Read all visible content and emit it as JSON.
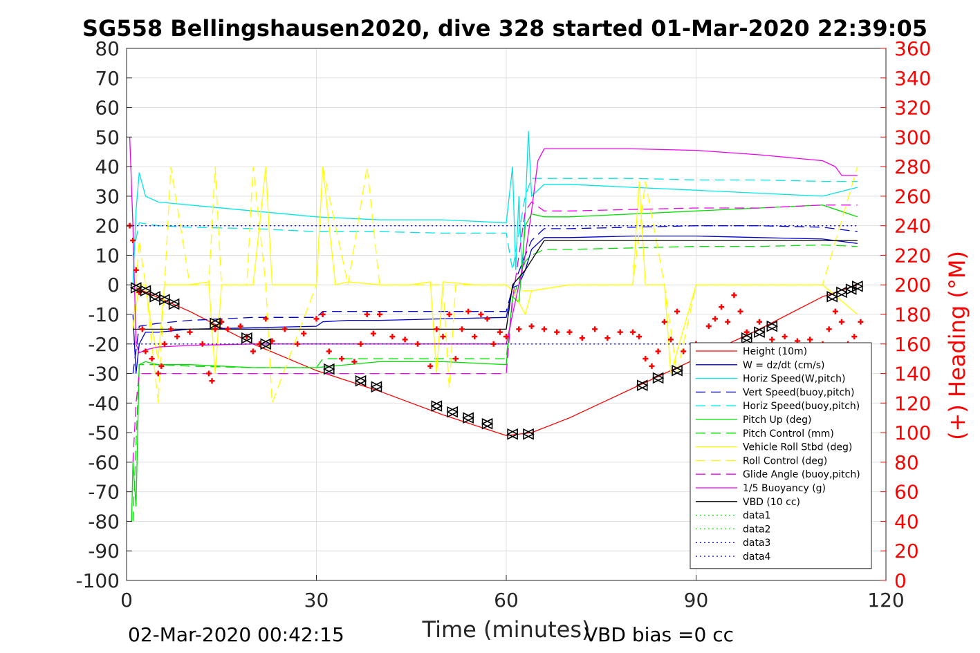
{
  "chart_data": {
    "type": "line",
    "title": "SG558 Bellingshausen2020, dive 328 started 01-Mar-2020 22:39:05",
    "xlabel": "Time (minutes)",
    "ylabel": "",
    "y2label": "(+) Heading (°M)",
    "xlim": [
      0,
      120
    ],
    "ylim": [
      -100,
      80
    ],
    "y2lim": [
      0,
      360
    ],
    "x_ticks": [
      "0",
      "30",
      "60",
      "90",
      "120"
    ],
    "y_ticks": [
      "80",
      "70",
      "60",
      "50",
      "40",
      "30",
      "20",
      "10",
      "0",
      "-10",
      "-20",
      "-30",
      "-40",
      "-50",
      "-60",
      "-70",
      "-80",
      "-90",
      "-100"
    ],
    "y2_ticks": [
      "360",
      "340",
      "320",
      "300",
      "280",
      "260",
      "240",
      "220",
      "200",
      "180",
      "160",
      "140",
      "120",
      "100",
      "80",
      "60",
      "40",
      "20",
      "0"
    ],
    "grid": true,
    "legend_position": "lower-right",
    "footer_left": "02-Mar-2020 00:42:15",
    "footer_right": "VBD bias =0 cc",
    "series": [
      {
        "name": "Height (10m)",
        "color": "#ff0000",
        "style": "solid",
        "x": [
          1.5,
          10,
          20,
          30,
          40,
          50,
          60,
          64,
          70,
          80,
          90,
          100,
          110,
          115.5
        ],
        "y": [
          -1,
          -9,
          -20,
          -29,
          -36,
          -44,
          -51,
          -50,
          -45,
          -35,
          -25,
          -15,
          -4,
          0
        ]
      },
      {
        "name": "W = dz/dt (cm/s)",
        "color": "#0000cc",
        "style": "solid",
        "x": [
          1,
          1.5,
          2,
          3,
          5,
          10,
          20,
          30,
          31,
          35,
          40,
          50,
          60,
          61,
          62,
          63,
          64,
          66,
          70,
          80,
          90,
          100,
          110,
          115.5
        ],
        "y": [
          -10,
          -30,
          -20,
          -16,
          -16,
          -15,
          -14.5,
          -14,
          -12.5,
          -12,
          -12,
          -11.5,
          -11,
          -1,
          0,
          5,
          12,
          16,
          16,
          16.5,
          16.5,
          16,
          15.5,
          14
        ]
      },
      {
        "name": "Horiz Speed(W,pitch)",
        "color": "#00e5e5",
        "style": "solid",
        "x": [
          1,
          1.5,
          2,
          3,
          5,
          10,
          20,
          30,
          40,
          50,
          60,
          61,
          61.5,
          62,
          62.5,
          63,
          63.5,
          64,
          66,
          70,
          80,
          90,
          100,
          110,
          115.5
        ],
        "y": [
          0,
          25,
          38,
          30,
          28,
          27,
          25,
          23,
          22,
          22,
          21,
          40,
          5,
          30,
          3,
          25,
          52,
          30,
          34,
          34,
          33,
          32,
          31,
          30,
          33
        ]
      },
      {
        "name": "Vert Speed(buoy,pitch)",
        "color": "#0000cc",
        "style": "dashed",
        "x": [
          1,
          2,
          5,
          10,
          20,
          30,
          31,
          40,
          50,
          60,
          61,
          63,
          64,
          66,
          70,
          80,
          90,
          100,
          110,
          115.5
        ],
        "y": [
          -30,
          -14,
          -13,
          -12,
          -11,
          -11,
          -9,
          -9,
          -9,
          -9,
          -1,
          10,
          15,
          19,
          19,
          19.5,
          20,
          20,
          19.5,
          18
        ]
      },
      {
        "name": "Horiz Speed(buoy,pitch)",
        "color": "#00e5e5",
        "style": "dashed",
        "x": [
          1,
          2,
          5,
          10,
          20,
          30,
          40,
          50,
          60,
          61,
          63,
          64,
          66,
          70,
          80,
          90,
          100,
          110,
          115.5
        ],
        "y": [
          10,
          21,
          20,
          19.5,
          19,
          18,
          18,
          17.5,
          17.5,
          5,
          30,
          36,
          36,
          36,
          36,
          35.5,
          35.5,
          35,
          35
        ]
      },
      {
        "name": "Pitch Up (deg)",
        "color": "#00dd00",
        "style": "solid",
        "x": [
          0.8,
          1,
          1.5,
          2,
          3,
          5,
          10,
          20,
          30,
          40,
          50,
          60,
          61,
          62,
          63,
          64,
          66,
          70,
          80,
          90,
          100,
          110,
          115.5
        ],
        "y": [
          -80,
          -60,
          -75,
          -27,
          -26,
          -27,
          -27,
          -28,
          -28,
          -26,
          -26,
          -27,
          -4,
          -6,
          20,
          24,
          23,
          23,
          24,
          25,
          26,
          27,
          23
        ]
      },
      {
        "name": "Pitch Control (mm)",
        "color": "#00dd00",
        "style": "dashed",
        "x": [
          1,
          2,
          5,
          10,
          20,
          30,
          31,
          40,
          50,
          60,
          61,
          63,
          64,
          66,
          70,
          80,
          90,
          100,
          110,
          115.5
        ],
        "y": [
          -80,
          -27,
          -27,
          -27.5,
          -28,
          -28,
          -25,
          -25,
          -25,
          -25,
          -5,
          8,
          10,
          12,
          12,
          12.5,
          13,
          13,
          13.5,
          13
        ]
      },
      {
        "name": "Vehicle Roll Stbd (deg)",
        "color": "#ffff00",
        "style": "solid",
        "x": [
          1,
          2,
          3,
          4,
          5,
          6,
          10,
          13,
          14,
          15,
          20,
          22,
          23,
          25,
          30,
          31,
          33,
          35,
          40,
          45,
          48,
          49,
          50,
          55,
          60,
          61,
          63,
          64,
          70,
          80,
          81,
          82,
          85,
          86,
          90,
          95,
          100,
          110,
          115.5
        ],
        "y": [
          -15,
          0,
          0,
          -15,
          -25,
          0,
          0,
          1,
          -30,
          0,
          0,
          40,
          0,
          0,
          0,
          40,
          0,
          1,
          0,
          0,
          1,
          -30,
          1,
          0,
          0,
          -2,
          -10,
          -2,
          0,
          0,
          35,
          0,
          0,
          -30,
          0,
          0,
          0,
          0,
          -10
        ]
      },
      {
        "name": "Roll Control (deg)",
        "color": "#ffff00",
        "style": "dashed",
        "x": [
          1,
          2,
          3,
          5,
          7,
          10,
          13,
          14,
          15,
          19,
          20,
          22,
          23,
          30,
          31,
          35,
          38,
          40,
          50,
          51,
          52,
          60,
          61,
          64,
          70,
          80,
          82,
          85,
          87,
          90,
          100,
          110,
          115.5
        ],
        "y": [
          -15,
          15,
          0,
          -40,
          40,
          0,
          0,
          40,
          0,
          0,
          40,
          0,
          -40,
          0,
          40,
          0,
          40,
          0,
          0,
          -35,
          0,
          0,
          -2,
          -2,
          0,
          0,
          35,
          0,
          -30,
          0,
          0,
          0,
          40
        ]
      },
      {
        "name": "Glide Angle (buoy,pitch)",
        "color": "#ee00ee",
        "style": "dashed",
        "x": [
          1,
          1.5,
          2,
          5,
          10,
          20,
          30,
          40,
          50,
          60,
          61,
          62,
          63,
          64,
          66,
          70,
          80,
          90,
          100,
          110,
          115.5
        ],
        "y": [
          -60,
          -40,
          -30,
          -30,
          -30,
          -30,
          -30,
          -30,
          -30,
          -30,
          -5,
          10,
          25,
          28,
          25,
          25,
          25.5,
          26,
          26,
          27,
          27
        ]
      },
      {
        "name": "1/5 Buoyancy (g)",
        "color": "#ee00ee",
        "style": "solid",
        "x": [
          0.5,
          1,
          1.5,
          2,
          3,
          5,
          10,
          20,
          30,
          40,
          50,
          60,
          61,
          63,
          64,
          65,
          66,
          70,
          80,
          90,
          100,
          110,
          112,
          113,
          115.5
        ],
        "y": [
          50,
          20,
          -20,
          -23,
          -22,
          -21,
          -20.5,
          -20,
          -20,
          -20,
          -20,
          -20,
          -10,
          10,
          25,
          42,
          46,
          46,
          46,
          45.5,
          44,
          42,
          40,
          37,
          37
        ]
      },
      {
        "name": "VBD (10 cc)",
        "color": "#000000",
        "style": "solid",
        "x": [
          1,
          2,
          3,
          60,
          61,
          63,
          66,
          115.5
        ],
        "y": [
          -15,
          -15,
          -15,
          -15,
          0,
          5,
          15,
          15
        ]
      },
      {
        "name": "data1",
        "color": "#00dd00",
        "style": "dotted",
        "x": [],
        "y": []
      },
      {
        "name": "data2",
        "color": "#00dd00",
        "style": "dotted",
        "x": [],
        "y": []
      },
      {
        "name": "data3",
        "color": "#0000cc",
        "style": "dotted",
        "x": [
          1,
          115.5
        ],
        "y": [
          20,
          20
        ]
      },
      {
        "name": "data4",
        "color": "#0000cc",
        "style": "dotted",
        "x": [
          1,
          115.5
        ],
        "y": [
          -20,
          -20
        ]
      }
    ],
    "heading_series": {
      "color": "#ff0000",
      "marker": "+",
      "axis": "right",
      "x": [
        0.5,
        1,
        1.5,
        2,
        2.5,
        3,
        4,
        5,
        5.5,
        6,
        7,
        8,
        10,
        12,
        13,
        13.5,
        14,
        15,
        16,
        18,
        19,
        20,
        21,
        22,
        23,
        25,
        27,
        28,
        30,
        31,
        32,
        34,
        36,
        37,
        38,
        39,
        40,
        42,
        44,
        46,
        48,
        49,
        50,
        51,
        52,
        53,
        54,
        55,
        56,
        57,
        58,
        59,
        60,
        62,
        64,
        66,
        68,
        70,
        72,
        74,
        76,
        78,
        80,
        81,
        82,
        83,
        84,
        85,
        86,
        87,
        88,
        90,
        92,
        93,
        94,
        95,
        96,
        97,
        98,
        100,
        102,
        104,
        106,
        108,
        110,
        111,
        112,
        113,
        114,
        115,
        116
      ],
      "y": [
        240,
        230,
        210,
        195,
        170,
        155,
        150,
        140,
        145,
        160,
        170,
        165,
        168,
        160,
        140,
        135,
        170,
        175,
        170,
        172,
        165,
        155,
        160,
        177,
        162,
        170,
        160,
        167,
        177,
        180,
        155,
        150,
        148,
        160,
        180,
        167,
        180,
        165,
        163,
        160,
        145,
        170,
        165,
        180,
        150,
        170,
        182,
        165,
        180,
        177,
        160,
        168,
        165,
        170,
        172,
        170,
        168,
        168,
        164,
        170,
        164,
        168,
        168,
        165,
        150,
        145,
        155,
        175,
        163,
        182,
        155,
        160,
        172,
        177,
        185,
        175,
        193,
        182,
        168,
        175,
        163,
        165,
        162,
        163,
        160,
        170,
        182,
        175,
        160,
        165,
        175
      ]
    },
    "dive_markers": {
      "x": [
        1.5,
        3,
        4.5,
        6,
        7.5,
        14,
        19,
        22,
        32,
        37,
        39.5,
        49,
        51.5,
        54,
        57,
        61,
        63.5,
        81.5,
        84,
        87,
        98,
        100,
        102,
        111.5,
        113,
        114.5,
        115.5
      ],
      "y": [
        -1,
        -2,
        -4,
        -5,
        -6.5,
        -13,
        -18,
        -20,
        -28.5,
        -32.5,
        -34.5,
        -41,
        -43,
        -45,
        -47,
        -50.5,
        -50.5,
        -34,
        -31.5,
        -29,
        -18,
        -16,
        -14,
        -4,
        -2.5,
        -1.5,
        -0.5
      ]
    }
  }
}
